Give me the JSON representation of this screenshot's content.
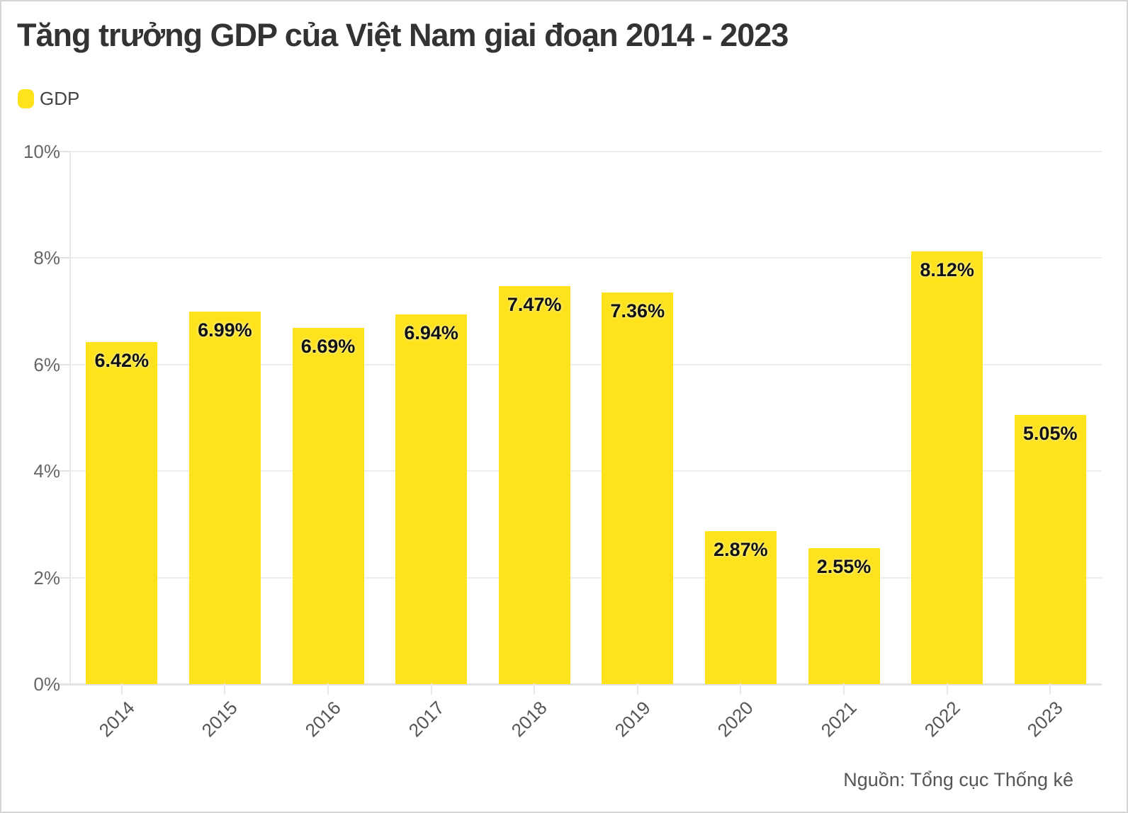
{
  "title": "Tăng trưởng GDP của Việt Nam giai đoạn 2014 - 2023",
  "legend": {
    "label": "GDP"
  },
  "source": "Nguồn: Tổng cục Thống kê",
  "colors": {
    "bar": "#fde21c",
    "title": "#333333",
    "y_label": "#666666",
    "x_label": "#555555",
    "grid": "#ededed",
    "data_label": "#111111",
    "border": "#d6d6d6"
  },
  "chart_data": {
    "type": "bar",
    "title": "Tăng trưởng GDP của Việt Nam giai đoạn 2014 - 2023",
    "series_name": "GDP",
    "categories": [
      "2014",
      "2015",
      "2016",
      "2017",
      "2018",
      "2019",
      "2020",
      "2021",
      "2022",
      "2023"
    ],
    "values": [
      6.42,
      6.99,
      6.69,
      6.94,
      7.47,
      7.36,
      2.87,
      2.55,
      8.12,
      5.05
    ],
    "data_labels": [
      "6.42%",
      "6.99%",
      "6.69%",
      "6.94%",
      "7.47%",
      "7.36%",
      "2.87%",
      "2.55%",
      "8.12%",
      "5.05%"
    ],
    "xlabel": "",
    "ylabel": "",
    "ylim": [
      0,
      10
    ],
    "y_tick_step": 2,
    "y_tick_labels": [
      "0%",
      "2%",
      "4%",
      "6%",
      "8%",
      "10%"
    ],
    "grid": true,
    "legend_position": "top-left",
    "bar_color": "#fde21c",
    "source": "Nguồn: Tổng cục Thống kê"
  }
}
